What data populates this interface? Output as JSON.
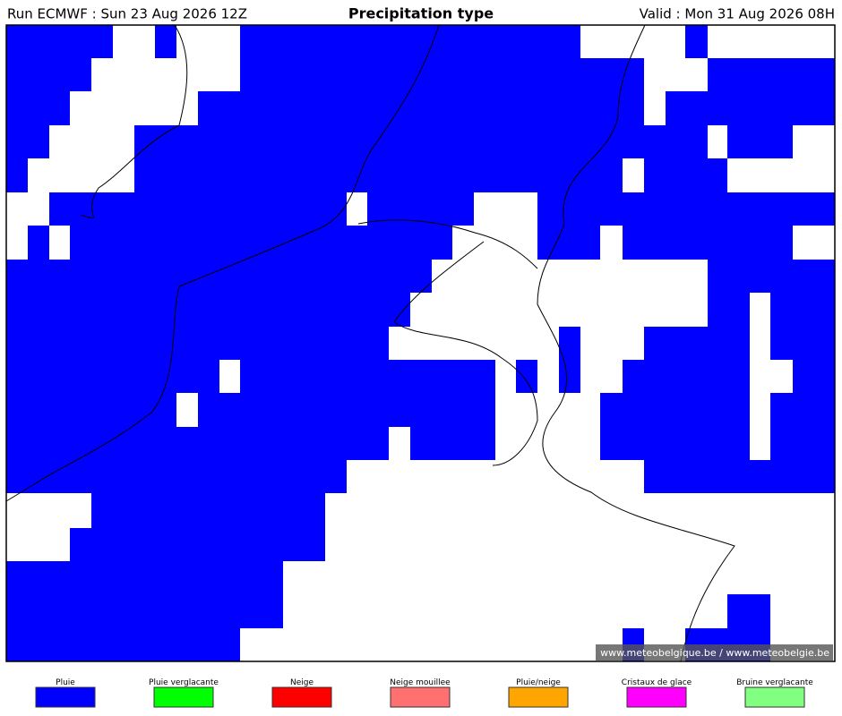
{
  "header": {
    "run": "Run ECMWF : Sun 23 Aug 2026 12Z",
    "title": "Precipitation type",
    "valid": "Valid : Mon 31 Aug 2026 08H"
  },
  "map": {
    "copyright": "© www.meteobelgique.be / www.meteobelgie.be"
  },
  "legend": {
    "items": [
      {
        "label": "Pluie",
        "color": "#0000ff"
      },
      {
        "label": "Pluie verglacante",
        "color": "#00ff00"
      },
      {
        "label": "Neige",
        "color": "#ff0000"
      },
      {
        "label": "Neige mouillee",
        "color": "#ff7070"
      },
      {
        "label": "Pluie/neige",
        "color": "#ffa500"
      },
      {
        "label": "Cristaux de glace",
        "color": "#ff00ff"
      },
      {
        "label": "Bruine verglacante",
        "color": "#80ff80"
      }
    ]
  }
}
